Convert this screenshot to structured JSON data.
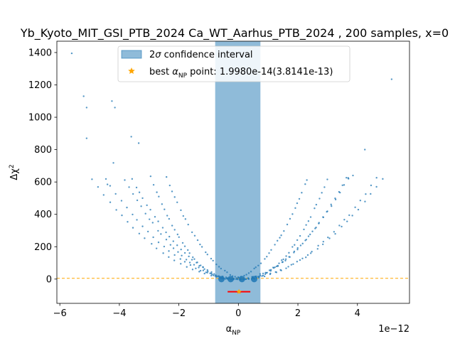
{
  "chart_data": {
    "type": "scatter",
    "title": "Yb_Kyoto_MIT_GSI_PTB_2024 Ca_WT_Aarhus_PTB_2024 , 200 samples, x=0",
    "xlabel_main": "α",
    "xlabel_sub": "NP",
    "ylabel_main": "Δχ",
    "ylabel_sup": "2",
    "x_offset_text": "1e−12",
    "x_scale": 1e-12,
    "xlim": [
      -6.1e-12,
      5.75e-12
    ],
    "ylim": [
      -150,
      1470
    ],
    "x_ticks": [
      -6e-12,
      -4e-12,
      -2e-12,
      0,
      2e-12,
      4e-12
    ],
    "x_tick_labels": [
      "−6",
      "−4",
      "−2",
      "0",
      "2",
      "4"
    ],
    "y_ticks": [
      0,
      200,
      400,
      600,
      800,
      1000,
      1200,
      1400
    ],
    "y_tick_labels": [
      "0",
      "200",
      "400",
      "600",
      "800",
      "1000",
      "1200",
      "1400"
    ],
    "legend": {
      "placement": "upper-center",
      "entries": [
        {
          "label_prefix": "2",
          "label_sigma": "σ",
          "label_suffix": " confidence interval",
          "kind": "band"
        },
        {
          "label_prefix": "best ",
          "label_alpha": "α",
          "label_sub": "NP",
          "label_suffix": " point: 1.9980e-14(3.8141e-13)",
          "kind": "star"
        }
      ]
    },
    "confidence_interval": [
      -7.8e-13,
      7.4e-13
    ],
    "best_point": {
      "x": 1.998e-14,
      "y": -78,
      "err": 3.8141e-13
    },
    "reference_line_y": 5,
    "min_points_x": [
      -5.7e-13,
      -2.6e-13,
      1.2e-13,
      5.3e-13
    ],
    "parabolas": [
      {
        "k": 90,
        "c": -3e-13,
        "n": 62
      },
      {
        "k": 85,
        "c": 3e-13,
        "n": 60
      },
      {
        "k": 48,
        "c": 2e-14,
        "n": 58
      },
      {
        "k": 44,
        "c": -8e-14,
        "n": 55
      },
      {
        "k": 30,
        "c": 8e-14,
        "n": 52
      },
      {
        "k": 26,
        "c": -4e-14,
        "n": 50
      }
    ],
    "outliers": [
      {
        "x": -5.6e-12,
        "y": 1395
      },
      {
        "x": -5.2e-12,
        "y": 1130
      },
      {
        "x": -5.1e-12,
        "y": 1060
      },
      {
        "x": -5.1e-12,
        "y": 870
      },
      {
        "x": -4.25e-12,
        "y": 1100
      },
      {
        "x": -4.15e-12,
        "y": 1060
      },
      {
        "x": -4.4e-12,
        "y": 585
      },
      {
        "x": -4.2e-12,
        "y": 718
      },
      {
        "x": 5.15e-12,
        "y": 1235
      },
      {
        "x": 4.25e-12,
        "y": 800
      },
      {
        "x": 3.85e-12,
        "y": 640
      },
      {
        "x": 3.7e-12,
        "y": 620
      },
      {
        "x": -3.35e-12,
        "y": 840
      },
      {
        "x": -3.6e-12,
        "y": 880
      }
    ],
    "colors": {
      "points": "#1f77b4",
      "band": "#1f77b4",
      "ref_line": "#ffa500",
      "err_bar": "#ff0000",
      "star": "#ffa500"
    }
  }
}
